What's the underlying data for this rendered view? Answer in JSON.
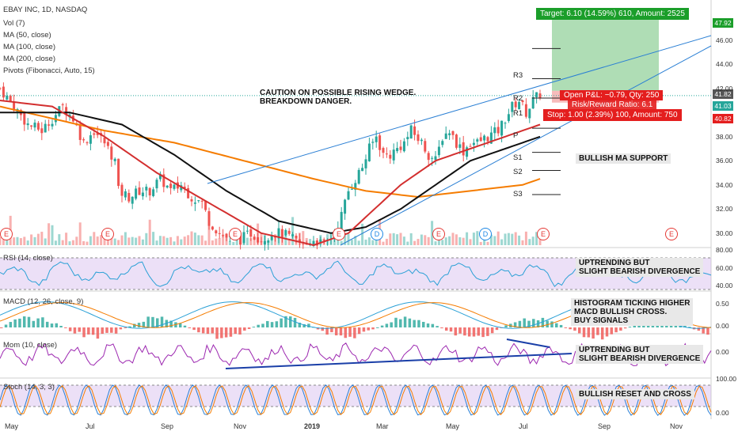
{
  "header": {
    "title": "EBAY INC, 1D, NASDAQ",
    "indicators": [
      "Vol (7)",
      "MA (50, close)",
      "MA (100, close)",
      "MA (200, close)",
      "Pivots (Fibonacci, Auto, 15)"
    ]
  },
  "panes": {
    "rsi": "RSI (14, close)",
    "macd": "MACD (12, 26, close, 9)",
    "mom": "Mom (10, close)",
    "stoch": "Stoch (14, 3, 3)"
  },
  "annotations": {
    "wedge": "CAUTION ON POSSIBLE RISING WEDGE.\nBREAKDOWN DANGER.",
    "ma_support": "BULLISH MA SUPPORT",
    "rsi_note": "UPTRENDING BUT\nSLIGHT BEARISH DIVERGENCE",
    "macd_note": "HISTOGRAM TICKING HIGHER\nMACD BULLISH CROSS.\nBUY SIGNALS",
    "mom_note": "UPTRENDING BUT\nSLIGHT BEARISH DIVERGENCE",
    "stoch_note": "BULLISH RESET AND CROSS"
  },
  "position": {
    "target": "Target: 6.10 (14.59%) 610, Amount: 2525",
    "open_pl": "Open P&L: −0.79, Qty: 250",
    "risk_reward": "Risk/Reward Ratio: 6.1",
    "stop": "Stop: 1.00 (2.39%) 100, Amount: 750"
  },
  "pivots": [
    "R3",
    "R2",
    "R1",
    "P",
    "S1",
    "S2",
    "S3"
  ],
  "events": [
    "E",
    "E",
    "E",
    "E",
    "D",
    "E",
    "D",
    "E",
    "E"
  ],
  "price_tags": {
    "target": "47.92",
    "current_a": "41.82",
    "current_b": "41.03",
    "stop": "40.82"
  },
  "colors": {
    "up": "#26a69a",
    "down": "#ef5350",
    "ma50": "#d32f2f",
    "ma100": "#111111",
    "ma200": "#f57c00",
    "trendline": "#2a7fd4",
    "target": "#1b9e2a",
    "stop": "#e41e1e",
    "rsi": "#2aa0d6",
    "mom": "#9c27b0",
    "stoch_k": "#2a7fd4",
    "stoch_d": "#f57c00"
  },
  "chart_data": {
    "type": "candlestick",
    "x_tick_labels": [
      "May",
      "Jul",
      "Sep",
      "Nov",
      "2019",
      "Mar",
      "May",
      "Jul",
      "Sep",
      "Nov"
    ],
    "y_ticks": [
      30,
      32,
      34,
      36,
      38,
      42,
      44,
      46
    ],
    "ylim": [
      29,
      49
    ],
    "rsi_ticks": [
      "80.00",
      "60.00",
      "40.00"
    ],
    "macd_ticks": [
      "0.50",
      "0.00"
    ],
    "mom_ticks": [
      "0.00"
    ],
    "stoch_ticks": [
      "100.00",
      "0.00"
    ],
    "close_path": [
      [
        0,
        42.0
      ],
      [
        4,
        40.5
      ],
      [
        8,
        39.0
      ],
      [
        12,
        38.5
      ],
      [
        15,
        39.5
      ],
      [
        18,
        40.5
      ],
      [
        21,
        39.5
      ],
      [
        24,
        37.5
      ],
      [
        27,
        38.5
      ],
      [
        30,
        37.5
      ],
      [
        33,
        36.0
      ],
      [
        34,
        33.5
      ],
      [
        37,
        33.0
      ],
      [
        40,
        33.5
      ],
      [
        43,
        33.5
      ],
      [
        46,
        34.5
      ],
      [
        49,
        33.5
      ],
      [
        52,
        34.0
      ],
      [
        55,
        33.0
      ],
      [
        58,
        32.5
      ],
      [
        60,
        31.0
      ],
      [
        63,
        30.0
      ],
      [
        66,
        29.5
      ],
      [
        69,
        29.5
      ],
      [
        72,
        30.0
      ],
      [
        75,
        29.5
      ],
      [
        78,
        30.0
      ],
      [
        81,
        30.0
      ],
      [
        84,
        29.5
      ],
      [
        87,
        29.0
      ],
      [
        90,
        29.5
      ],
      [
        93,
        29.0
      ],
      [
        96,
        30.0
      ],
      [
        98,
        31.5
      ],
      [
        100,
        33.5
      ],
      [
        102,
        34.5
      ],
      [
        104,
        35.5
      ],
      [
        106,
        37.0
      ],
      [
        108,
        38.0
      ],
      [
        110,
        36.5
      ],
      [
        112,
        36.5
      ],
      [
        114,
        37.0
      ],
      [
        116,
        37.5
      ],
      [
        118,
        38.5
      ],
      [
        121,
        37.5
      ],
      [
        123,
        36.5
      ],
      [
        125,
        36.0
      ],
      [
        127,
        38.0
      ],
      [
        129,
        38.5
      ],
      [
        131,
        37.5
      ],
      [
        133,
        36.8
      ],
      [
        135,
        37.5
      ],
      [
        137,
        37.5
      ],
      [
        140,
        38.0
      ],
      [
        143,
        38.5
      ],
      [
        145,
        39.5
      ],
      [
        147,
        40.5
      ],
      [
        149,
        41.0
      ],
      [
        151,
        40.0
      ],
      [
        153,
        41.0
      ],
      [
        155,
        41.5
      ]
    ],
    "ma50": [
      [
        0,
        41.0
      ],
      [
        15,
        40.5
      ],
      [
        30,
        38.0
      ],
      [
        45,
        35.0
      ],
      [
        60,
        32.5
      ],
      [
        75,
        30.0
      ],
      [
        90,
        29.0
      ],
      [
        100,
        30.0
      ],
      [
        115,
        34.0
      ],
      [
        125,
        36.0
      ],
      [
        135,
        37.0
      ],
      [
        145,
        38.0
      ],
      [
        155,
        39.0
      ]
    ],
    "ma100": [
      [
        0,
        40.0
      ],
      [
        20,
        40.0
      ],
      [
        35,
        39.0
      ],
      [
        50,
        36.5
      ],
      [
        65,
        33.5
      ],
      [
        80,
        31.0
      ],
      [
        95,
        30.0
      ],
      [
        105,
        30.5
      ],
      [
        115,
        32.0
      ],
      [
        125,
        34.0
      ],
      [
        135,
        36.0
      ],
      [
        145,
        37.0
      ],
      [
        155,
        38.0
      ]
    ],
    "ma200": [
      [
        0,
        40.5
      ],
      [
        30,
        38.5
      ],
      [
        50,
        37.5
      ],
      [
        70,
        36.0
      ],
      [
        90,
        34.5
      ],
      [
        105,
        33.5
      ],
      [
        120,
        33.0
      ],
      [
        135,
        33.5
      ],
      [
        150,
        34.0
      ],
      [
        155,
        34.5
      ]
    ],
    "pivot_levels": {
      "R3": 45.3,
      "R2": 42.8,
      "R1": 41.2,
      "P": 38.7,
      "S1": 36.7,
      "S2": 35.2,
      "S3": 33.2
    }
  }
}
